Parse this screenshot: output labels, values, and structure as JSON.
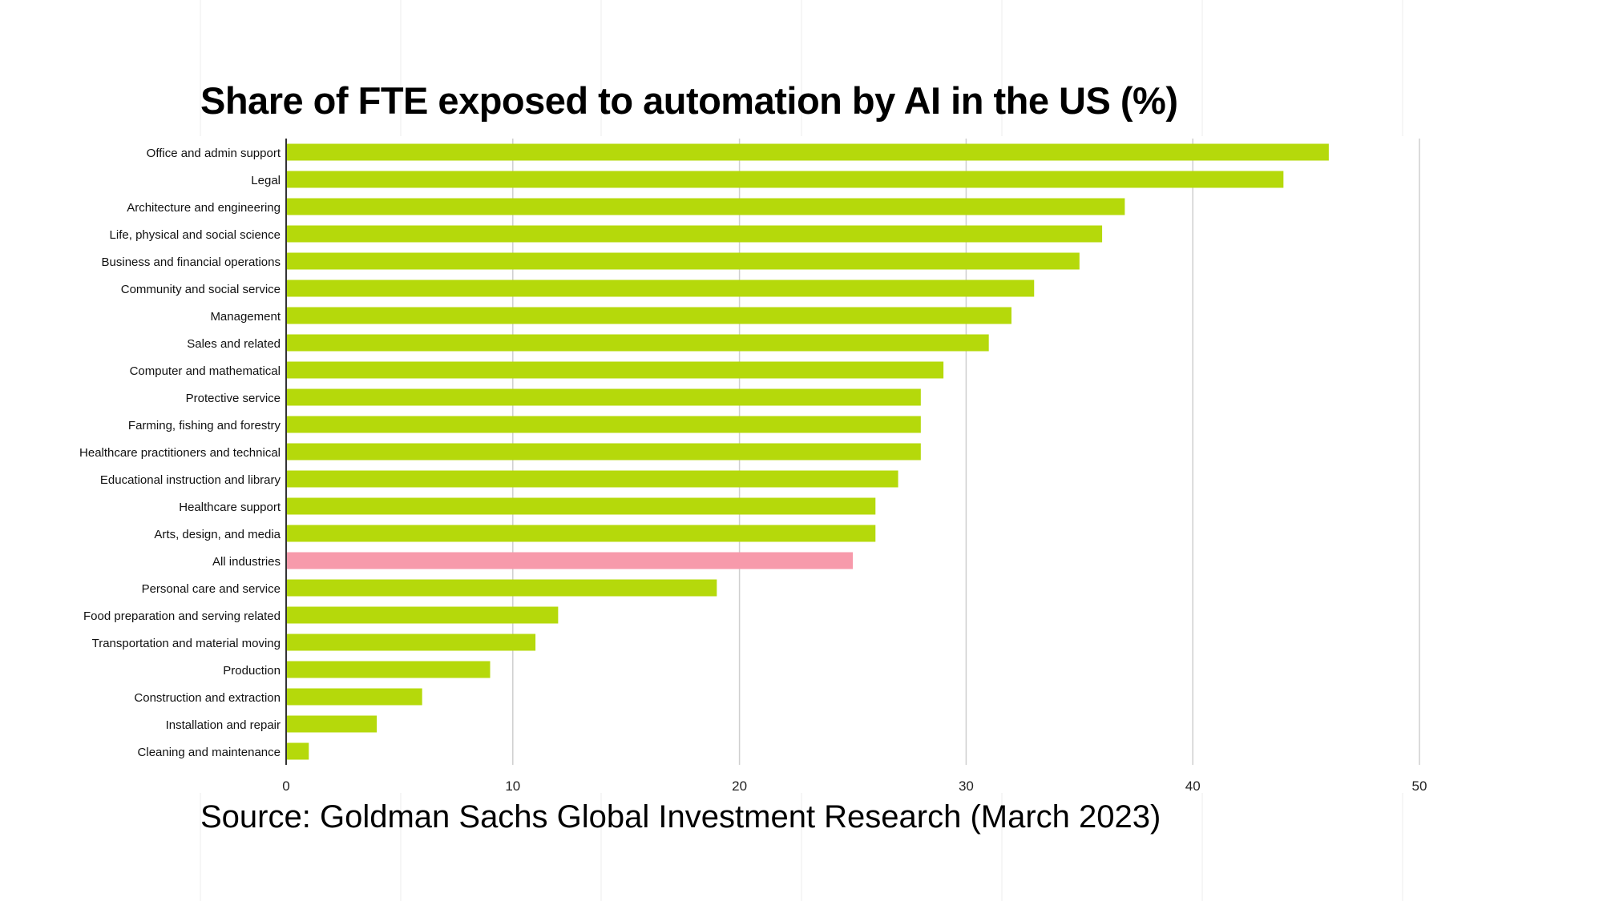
{
  "colors": {
    "bar": "#b5d90b",
    "highlight_bar": "#f79aab",
    "gridline": "#cfcfcf",
    "axis": "#333333",
    "background_grid": "#ececec"
  },
  "chart_data": {
    "type": "bar",
    "orientation": "horizontal",
    "title": "Share of FTE exposed to automation by AI in the US (%)",
    "source": "Source: Goldman Sachs Global Investment Research (March 2023)",
    "xlabel": "",
    "ylabel": "",
    "xlim": [
      0,
      50
    ],
    "xticks": [
      "0",
      "10",
      "20",
      "30",
      "40",
      "50"
    ],
    "grid": true,
    "legend": "none",
    "highlight_category": "All industries",
    "categories": [
      "Office and admin support",
      "Legal",
      "Architecture and engineering",
      "Life, physical and social science",
      "Business and financial operations",
      "Community and social service",
      "Management",
      "Sales and related",
      "Computer and mathematical",
      "Protective service",
      "Farming, fishing and forestry",
      "Healthcare practitioners and technical",
      "Educational instruction and library",
      "Healthcare support",
      "Arts, design, and media",
      "All industries",
      "Personal care and service",
      "Food preparation and serving related",
      "Transportation and material moving",
      "Production",
      "Construction and extraction",
      "Installation and repair",
      "Cleaning and maintenance"
    ],
    "values": [
      46,
      44,
      37,
      36,
      35,
      33,
      32,
      31,
      29,
      28,
      28,
      28,
      27,
      26,
      26,
      25,
      19,
      12,
      11,
      9,
      6,
      4,
      1
    ]
  }
}
